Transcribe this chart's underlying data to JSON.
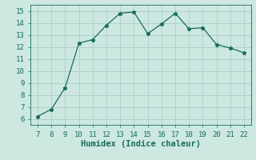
{
  "x": [
    7,
    8,
    9,
    10,
    11,
    12,
    13,
    14,
    15,
    16,
    17,
    18,
    19,
    20,
    21,
    22
  ],
  "y": [
    6.2,
    6.8,
    8.6,
    12.3,
    12.6,
    13.8,
    14.8,
    14.9,
    13.1,
    13.9,
    14.8,
    13.5,
    13.6,
    12.2,
    11.9,
    11.5
  ],
  "xlabel": "Humidex (Indice chaleur)",
  "line_color": "#1a6b5a",
  "marker": "*",
  "bg_color": "#cce8e0",
  "grid_color": "#aacfc8",
  "xlim": [
    6.5,
    22.5
  ],
  "ylim": [
    5.5,
    15.5
  ],
  "xticks": [
    7,
    8,
    9,
    10,
    11,
    12,
    13,
    14,
    15,
    16,
    17,
    18,
    19,
    20,
    21,
    22
  ],
  "yticks": [
    6,
    7,
    8,
    9,
    10,
    11,
    12,
    13,
    14,
    15
  ],
  "tick_fontsize": 6.5,
  "xlabel_fontsize": 7.5,
  "tick_color": "#1a6b5a",
  "label_color": "#1a6b5a"
}
